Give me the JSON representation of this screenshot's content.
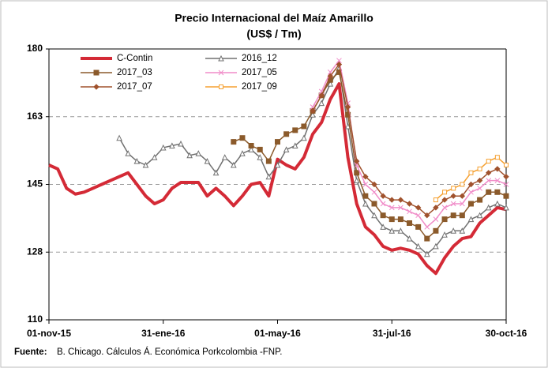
{
  "chart_data": {
    "type": "line",
    "title": "Precio Internacional del Maíz Amarillo",
    "subtitle": "(US$ / Tm)",
    "source_label": "Fuente:",
    "source": "B. Chicago. Cálculos Á. Económica Porkcolombia  -FNP.",
    "x": [
      "01-nov-15",
      "08-nov-15",
      "15-nov-15",
      "22-nov-15",
      "29-nov-15",
      "06-dic-15",
      "13-dic-15",
      "20-dic-15",
      "27-dic-15",
      "03-ene-16",
      "10-ene-16",
      "17-ene-16",
      "24-ene-16",
      "31-ene-16",
      "07-feb-16",
      "14-feb-16",
      "21-feb-16",
      "28-feb-16",
      "06-mar-16",
      "13-mar-16",
      "20-mar-16",
      "27-mar-16",
      "03-abr-16",
      "10-abr-16",
      "17-abr-16",
      "24-abr-16",
      "01-may-16",
      "08-may-16",
      "15-may-16",
      "22-may-16",
      "29-may-16",
      "05-jun-16",
      "12-jun-16",
      "19-jun-16",
      "26-jun-16",
      "03-jul-16",
      "10-jul-16",
      "17-jul-16",
      "24-jul-16",
      "31-jul-16",
      "07-ago-16",
      "14-ago-16",
      "21-ago-16",
      "28-ago-16",
      "04-sep-16",
      "11-sep-16",
      "18-sep-16",
      "25-sep-16",
      "02-oct-16",
      "09-oct-16",
      "16-oct-16",
      "23-oct-16",
      "30-oct-16"
    ],
    "xlim": [
      "01-nov-15",
      "30-oct-16"
    ],
    "xticks": [
      "01-nov-15",
      "31-ene-16",
      "01-may-16",
      "31-jul-16",
      "30-oct-16"
    ],
    "ylim": [
      110,
      180
    ],
    "yticks": [
      110,
      {
        "value": 127.5,
        "label": "128"
      },
      145,
      {
        "value": 162.5,
        "label": "163"
      },
      180
    ],
    "grid": true,
    "legend_position": "upper-left",
    "series": [
      {
        "name": "C-Contin",
        "color": "#d42a36",
        "marker": "none",
        "values": [
          150,
          149,
          144,
          142.5,
          143,
          144,
          145,
          146,
          147,
          148,
          145,
          142,
          140,
          141,
          144,
          145.5,
          145.5,
          145.5,
          142,
          144,
          142,
          139.5,
          142,
          145,
          145.5,
          142,
          151.5,
          150,
          149,
          152,
          158,
          161,
          167,
          171,
          152,
          140,
          134,
          132,
          129,
          128,
          128.5,
          128,
          127,
          124,
          122,
          126,
          129,
          131,
          131.5,
          135,
          137,
          139,
          138.5
        ]
      },
      {
        "name": "2016_12",
        "color": "#707070",
        "marker": "triangle",
        "values": [
          null,
          null,
          null,
          null,
          null,
          null,
          null,
          null,
          157,
          153,
          151,
          150,
          152,
          154.5,
          155,
          155.5,
          152.5,
          153,
          151,
          148,
          152,
          150,
          153,
          154,
          152,
          147,
          150,
          154,
          155,
          157,
          163,
          166,
          171,
          175,
          160,
          146,
          140,
          137,
          134,
          133,
          133,
          131,
          129,
          127,
          129,
          132,
          133,
          133,
          136,
          137,
          139,
          140,
          139
        ]
      },
      {
        "name": "2017_03",
        "color": "#8b5a2b",
        "marker": "square",
        "values": [
          null,
          null,
          null,
          null,
          null,
          null,
          null,
          null,
          null,
          null,
          null,
          null,
          null,
          null,
          null,
          null,
          null,
          null,
          null,
          null,
          null,
          156,
          157,
          155,
          154,
          151,
          156,
          158,
          159,
          160,
          164,
          168,
          172,
          174,
          163,
          148,
          142,
          140,
          137,
          136,
          136,
          135,
          134,
          131,
          133,
          136,
          137,
          137,
          140,
          141,
          143,
          143,
          142
        ]
      },
      {
        "name": "2017_05",
        "color": "#f08cc8",
        "marker": "x",
        "values": [
          null,
          null,
          null,
          null,
          null,
          null,
          null,
          null,
          null,
          null,
          null,
          null,
          null,
          null,
          null,
          null,
          null,
          null,
          null,
          null,
          null,
          null,
          null,
          null,
          null,
          null,
          null,
          null,
          null,
          null,
          165,
          169,
          174,
          177,
          166,
          150,
          145,
          143,
          140,
          139,
          139,
          138,
          137,
          134,
          136,
          139,
          140,
          140,
          143,
          144,
          146,
          146,
          145
        ]
      },
      {
        "name": "2017_07",
        "color": "#a0522d",
        "marker": "diamond",
        "values": [
          null,
          null,
          null,
          null,
          null,
          null,
          null,
          null,
          null,
          null,
          null,
          null,
          null,
          null,
          null,
          null,
          null,
          null,
          null,
          null,
          null,
          null,
          null,
          null,
          null,
          null,
          null,
          null,
          null,
          null,
          164,
          168,
          173,
          176,
          165,
          151,
          147,
          145,
          142,
          141,
          141,
          140,
          139,
          137,
          139,
          141,
          142,
          142,
          145,
          146,
          148,
          149,
          147
        ]
      },
      {
        "name": "2017_09",
        "color": "#f5a030",
        "marker": "circle",
        "values": [
          null,
          null,
          null,
          null,
          null,
          null,
          null,
          null,
          null,
          null,
          null,
          null,
          null,
          null,
          null,
          null,
          null,
          null,
          null,
          null,
          null,
          null,
          null,
          null,
          null,
          null,
          null,
          null,
          null,
          null,
          null,
          null,
          null,
          null,
          null,
          null,
          null,
          null,
          null,
          null,
          null,
          null,
          null,
          null,
          141,
          143,
          144,
          145,
          148,
          149,
          151,
          152,
          150
        ]
      }
    ]
  }
}
